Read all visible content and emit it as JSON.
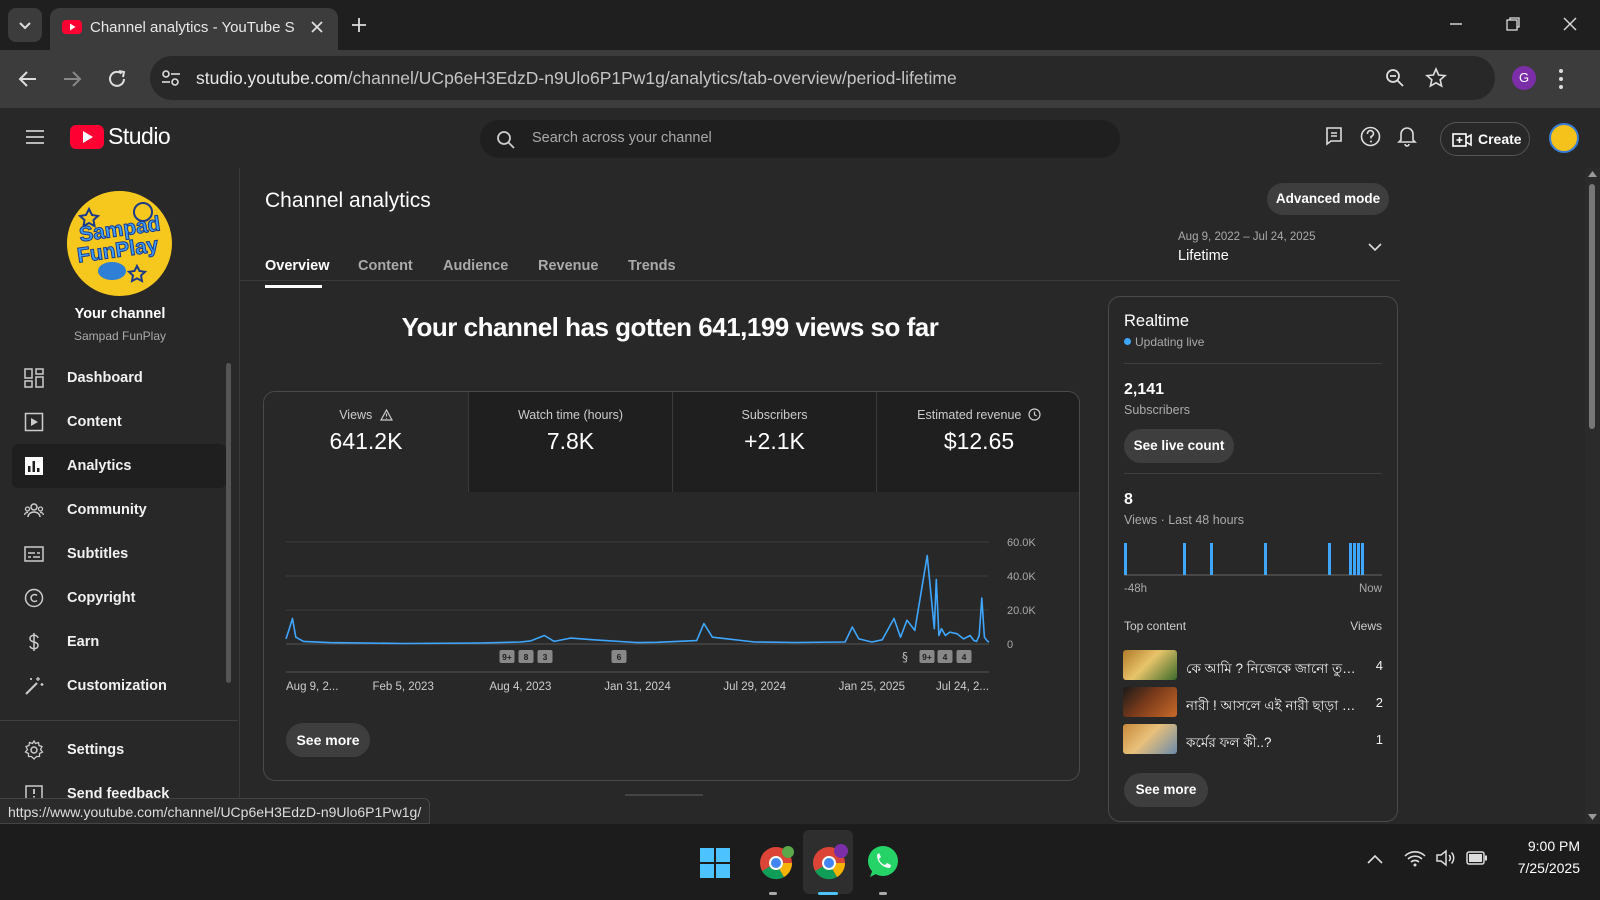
{
  "browser": {
    "tab_title": "Channel analytics - YouTube Studio",
    "url_host": "studio.youtube.com",
    "url_path": "/channel/UCp6eH3EdzD-n9Ulo6P1Pw1g/analytics/tab-overview/period-lifetime",
    "profile_initial": "G",
    "status_url": "https://www.youtube.com/channel/UCp6eH3EdzD-n9Ulo6P1Pw1g/"
  },
  "header": {
    "logo_text": "Studio",
    "search_placeholder": "Search across your channel",
    "create_label": "Create"
  },
  "sidebar": {
    "your_channel": "Your channel",
    "channel_name": "Sampad FunPlay",
    "logo_line1": "Sampad",
    "logo_line2": "FunPlay",
    "items": [
      {
        "label": "Dashboard",
        "icon": "dashboard-icon"
      },
      {
        "label": "Content",
        "icon": "content-icon"
      },
      {
        "label": "Analytics",
        "icon": "analytics-icon"
      },
      {
        "label": "Community",
        "icon": "community-icon"
      },
      {
        "label": "Subtitles",
        "icon": "subtitles-icon"
      },
      {
        "label": "Copyright",
        "icon": "copyright-icon"
      },
      {
        "label": "Earn",
        "icon": "earn-icon"
      },
      {
        "label": "Customization",
        "icon": "customization-icon"
      }
    ],
    "settings_label": "Settings",
    "feedback_label": "Send feedback"
  },
  "main": {
    "title": "Channel analytics",
    "advanced_mode": "Advanced mode",
    "tabs": [
      "Overview",
      "Content",
      "Audience",
      "Revenue",
      "Trends"
    ],
    "active_tab": "Overview",
    "date_range": "Aug 9, 2022 – Jul 24, 2025",
    "period": "Lifetime",
    "headline": "Your channel has gotten 641,199 views so far",
    "metrics": [
      {
        "label": "Views",
        "value": "641.2K",
        "icon": "warning-icon"
      },
      {
        "label": "Watch time (hours)",
        "value": "7.8K",
        "icon": ""
      },
      {
        "label": "Subscribers",
        "value": "+2.1K",
        "icon": ""
      },
      {
        "label": "Estimated revenue",
        "value": "$12.65",
        "icon": "clock-icon"
      }
    ],
    "see_more": "See more",
    "accent_color": "#3ea6ff"
  },
  "chart_data": {
    "type": "line",
    "x_tick_labels": [
      "Aug 9, 2...",
      "Feb 5, 2023",
      "Aug 4, 2023",
      "Jan 31, 2024",
      "Jul 29, 2024",
      "Jan 25, 2025",
      "Jul 24, 2..."
    ],
    "y_tick_labels": [
      "60.0K",
      "40.0K",
      "20.0K",
      "0"
    ],
    "ylim": [
      0,
      60000
    ],
    "series": [
      {
        "x": [
          "2022-08-09",
          "2022-08-14",
          "2022-08-19",
          "2022-08-24",
          "2022-09-05",
          "2022-10-15",
          "2023-02-05",
          "2023-06-01",
          "2023-08-04",
          "2023-08-20",
          "2023-09-10",
          "2023-09-25",
          "2023-10-20",
          "2023-11-25",
          "2024-01-31",
          "2024-03-01",
          "2024-05-01",
          "2024-05-12",
          "2024-05-25",
          "2024-07-29",
          "2024-10-01",
          "2024-12-15",
          "2024-12-26",
          "2025-01-05",
          "2025-01-25",
          "2025-02-10",
          "2025-02-28",
          "2025-03-10",
          "2025-03-20",
          "2025-04-01",
          "2025-04-20",
          "2025-05-01",
          "2025-05-04",
          "2025-05-08",
          "2025-05-12",
          "2025-05-18",
          "2025-05-25",
          "2025-06-05",
          "2025-06-15",
          "2025-06-25",
          "2025-07-01",
          "2025-07-05",
          "2025-07-09",
          "2025-07-13",
          "2025-07-17",
          "2025-07-21",
          "2025-07-24"
        ],
        "y": [
          3000,
          9000,
          15000,
          4000,
          1500,
          800,
          300,
          600,
          1200,
          1800,
          5000,
          1500,
          3500,
          2500,
          800,
          1000,
          2000,
          12000,
          4000,
          1200,
          900,
          1200,
          10000,
          3000,
          1200,
          2500,
          15000,
          4000,
          14000,
          8000,
          52000,
          9000,
          38000,
          5000,
          9000,
          5000,
          7000,
          6000,
          3000,
          5000,
          2000,
          1500,
          5000,
          27000,
          4000,
          2000,
          1000
        ]
      }
    ],
    "markers": [
      "9+",
      "8",
      "3",
      "6",
      "9+",
      "4",
      "4"
    ]
  },
  "realtime": {
    "title": "Realtime",
    "status": "Updating live",
    "subscribers_value": "2,141",
    "subscribers_label": "Subscribers",
    "see_live_count": "See live count",
    "views_value": "8",
    "views_label": "Views · Last 48 hours",
    "axis_start": "-48h",
    "axis_end": "Now",
    "bars": [
      1,
      1,
      1,
      1,
      1,
      1,
      1,
      1,
      1
    ],
    "top_content_label": "Top content",
    "views_col_label": "Views",
    "top_content": [
      {
        "title": "কে আমি ? নিজেকে জানো তুমি !!",
        "views": "4"
      },
      {
        "title": "নারী ! আসলে এই নারী ছাড়া আ...",
        "views": "2"
      },
      {
        "title": "কর্মের ফল কী..?",
        "views": "1"
      }
    ],
    "see_more": "See more"
  },
  "taskbar": {
    "time": "9:00 PM",
    "date": "7/25/2025"
  }
}
